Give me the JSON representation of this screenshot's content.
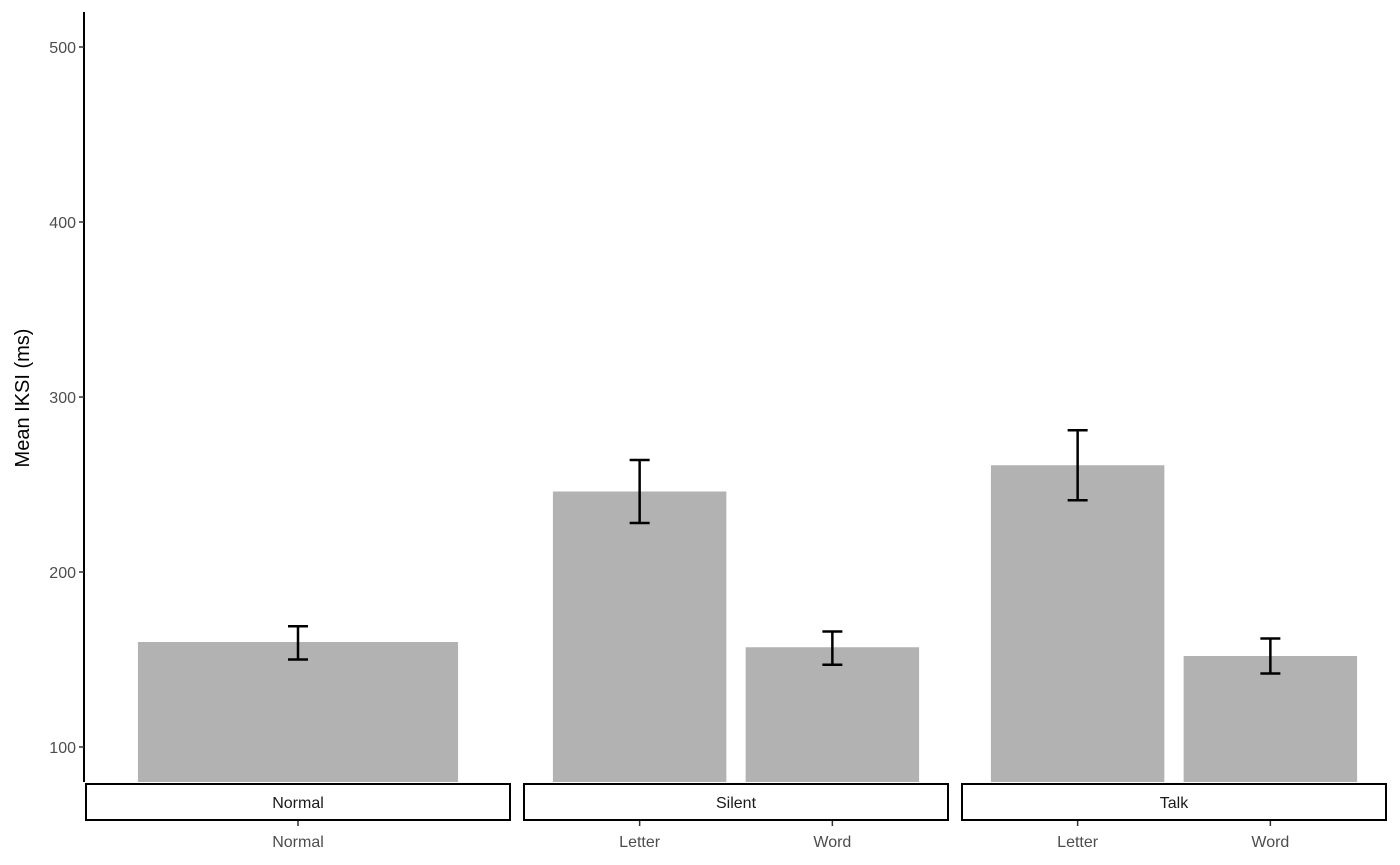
{
  "chart_data": {
    "type": "bar",
    "ylabel": "Mean IKSI (ms)",
    "xlabel": "",
    "ylim": [
      80,
      520
    ],
    "yticks": [
      100,
      200,
      300,
      400,
      500
    ],
    "grid": false,
    "bar_color": "#b2b2b2",
    "facets": [
      {
        "label": "Normal",
        "categories": [
          "Normal"
        ],
        "values": [
          160
        ],
        "error_low": [
          150
        ],
        "error_high": [
          169
        ]
      },
      {
        "label": "Silent",
        "categories": [
          "Letter",
          "Word"
        ],
        "values": [
          246,
          157
        ],
        "error_low": [
          228,
          147
        ],
        "error_high": [
          264,
          166
        ]
      },
      {
        "label": "Talk",
        "categories": [
          "Letter",
          "Word"
        ],
        "values": [
          261,
          152
        ],
        "error_low": [
          241,
          142
        ],
        "error_high": [
          281,
          162
        ]
      }
    ]
  }
}
